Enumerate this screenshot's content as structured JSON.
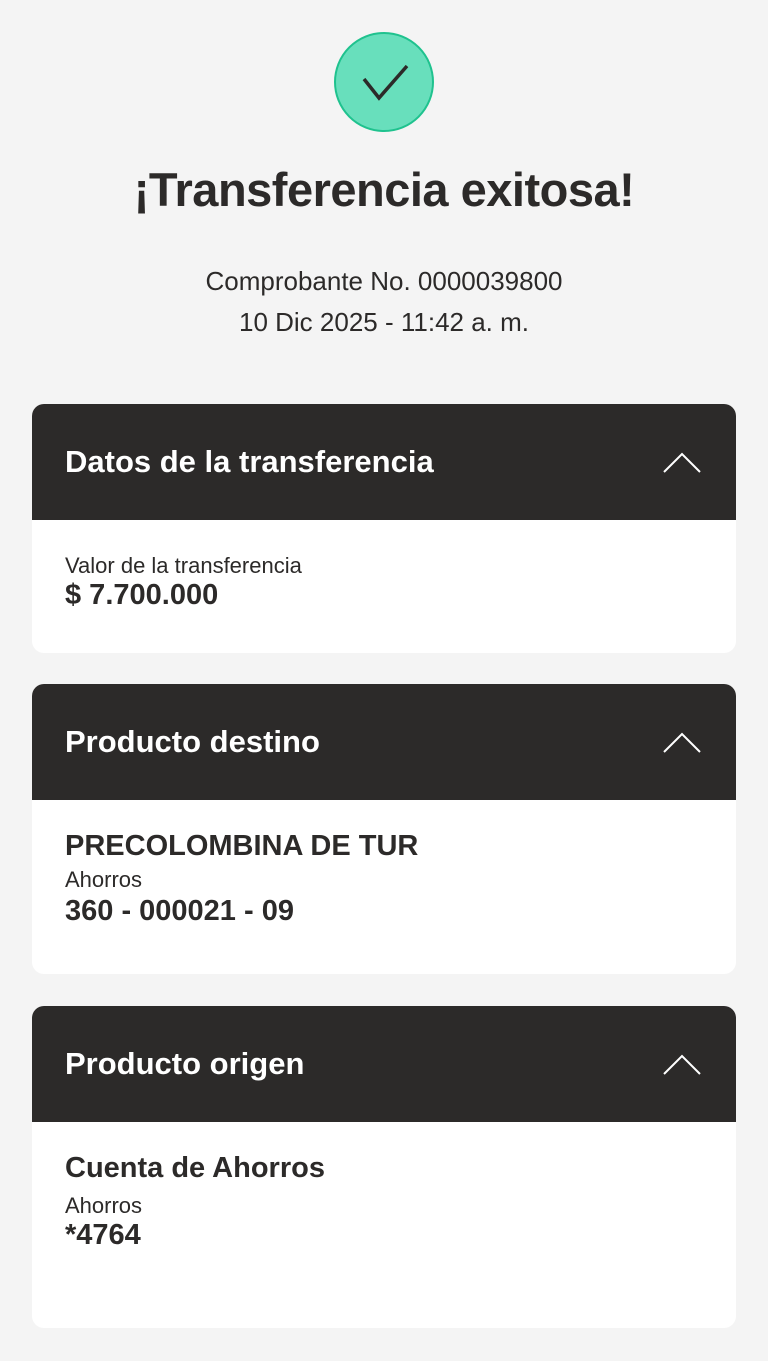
{
  "header": {
    "icon": "check-circle-icon",
    "accent": "#68dfbc",
    "title": "¡Transferencia exitosa!",
    "receipt": "Comprobante No. 0000039800",
    "datetime": "10 Dic 2025 - 11:42 a. m."
  },
  "sections": [
    {
      "title": "Datos de la transferencia",
      "label": "Valor de la transferencia",
      "value": "$ 7.700.000"
    },
    {
      "title": "Producto destino",
      "name": "PRECOLOMBINA DE TUR",
      "type": "Ahorros",
      "account": "360 - 000021 - 09"
    },
    {
      "title": "Producto origen",
      "name": "Cuenta de Ahorros",
      "type": "Ahorros",
      "account": "*4764"
    }
  ]
}
